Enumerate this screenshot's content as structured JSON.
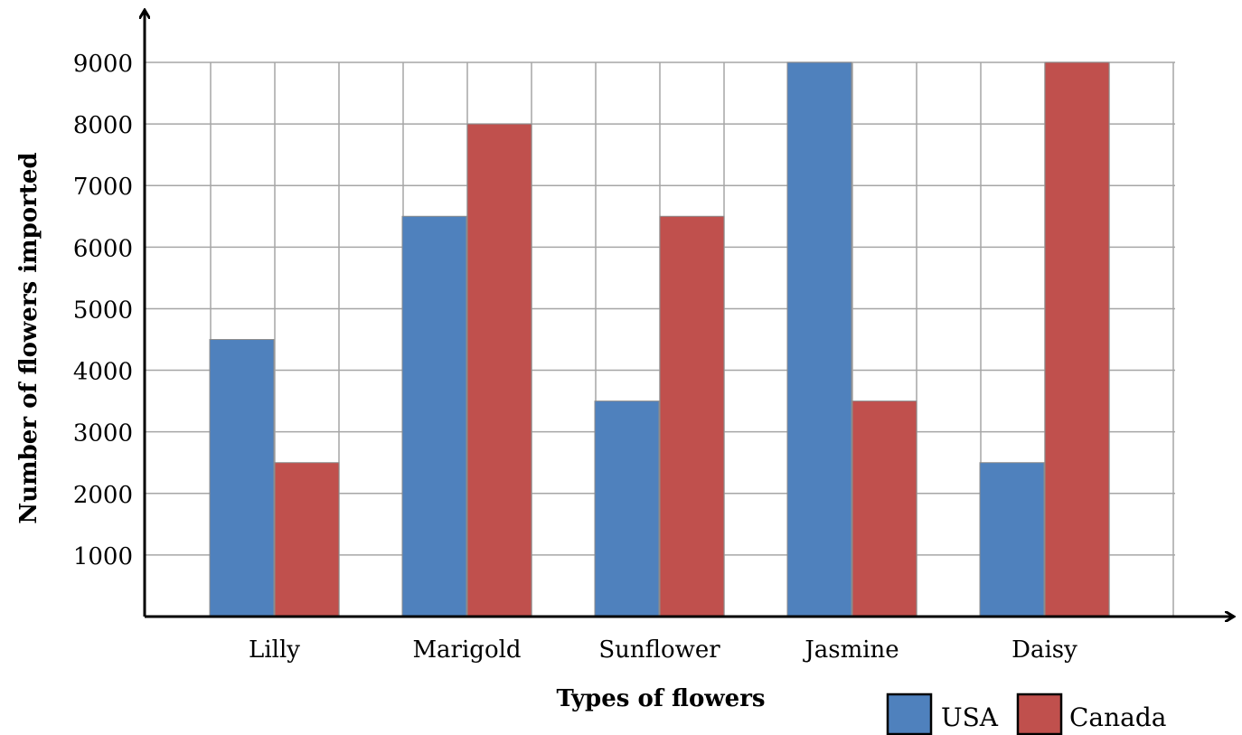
{
  "chart_data": {
    "type": "bar",
    "title": "",
    "xlabel": "Types of flowers",
    "ylabel": "Number of flowers imported",
    "categories": [
      "Lilly",
      "Marigold",
      "Sunflower",
      "Jasmine",
      "Daisy"
    ],
    "series": [
      {
        "name": "USA",
        "color": "#4f81bd",
        "values": [
          4500,
          6500,
          3500,
          9000,
          2500
        ]
      },
      {
        "name": "Canada",
        "color": "#c0504d",
        "values": [
          2500,
          8000,
          6500,
          3500,
          9000
        ]
      }
    ],
    "y_ticks": [
      "1000",
      "2000",
      "3000",
      "4000",
      "5000",
      "6000",
      "7000",
      "8000",
      "9000"
    ],
    "ylim": [
      0,
      9000
    ],
    "grid": true,
    "legend_position": "bottom-right"
  }
}
